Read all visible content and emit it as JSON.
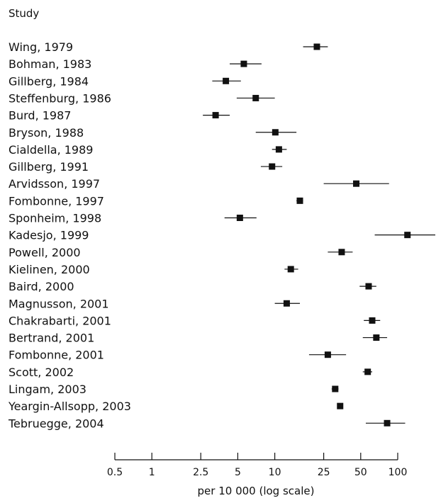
{
  "chart_data": {
    "type": "forest",
    "column_header": "Study",
    "xlabel": "per 10 000 (log scale)",
    "x_scale": "log",
    "xlim": [
      0.5,
      100
    ],
    "x_ticks": [
      {
        "value": 0.5,
        "label": "0.5"
      },
      {
        "value": 1,
        "label": "1"
      },
      {
        "value": 2.5,
        "label": "2.5"
      },
      {
        "value": 5,
        "label": "5"
      },
      {
        "value": 10,
        "label": "10"
      },
      {
        "value": 25,
        "label": "25"
      },
      {
        "value": 50,
        "label": "50"
      },
      {
        "value": 100,
        "label": "100"
      }
    ],
    "studies": [
      {
        "label": "Wing, 1979",
        "estimate": 22,
        "lower": 17,
        "upper": 27
      },
      {
        "label": "Bohman, 1983",
        "estimate": 5.6,
        "lower": 4.3,
        "upper": 7.8
      },
      {
        "label": "Gillberg, 1984",
        "estimate": 4.0,
        "lower": 3.1,
        "upper": 5.3
      },
      {
        "label": "Steffenburg, 1986",
        "estimate": 7.0,
        "lower": 4.9,
        "upper": 10.0
      },
      {
        "label": "Burd, 1987",
        "estimate": 3.3,
        "lower": 2.6,
        "upper": 4.3
      },
      {
        "label": "Bryson, 1988",
        "estimate": 10.1,
        "lower": 7.0,
        "upper": 15.0
      },
      {
        "label": "Cialdella, 1989",
        "estimate": 10.8,
        "lower": 9.5,
        "upper": 12.5
      },
      {
        "label": "Gillberg, 1991",
        "estimate": 9.5,
        "lower": 7.7,
        "upper": 11.5
      },
      {
        "label": "Arvidsson, 1997",
        "estimate": 46,
        "lower": 25,
        "upper": 85
      },
      {
        "label": "Fombonne, 1997",
        "estimate": 16,
        "lower": 15,
        "upper": 17
      },
      {
        "label": "Sponheim, 1998",
        "estimate": 5.2,
        "lower": 3.9,
        "upper": 7.1
      },
      {
        "label": "Kadesjo, 1999",
        "estimate": 120,
        "lower": 65,
        "upper": 215
      },
      {
        "label": "Powell, 2000",
        "estimate": 35,
        "lower": 27,
        "upper": 43
      },
      {
        "label": "Kielinen, 2000",
        "estimate": 13.5,
        "lower": 12,
        "upper": 15.5
      },
      {
        "label": "Baird, 2000",
        "estimate": 58,
        "lower": 49,
        "upper": 67
      },
      {
        "label": "Magnusson, 2001",
        "estimate": 12.5,
        "lower": 10,
        "upper": 16
      },
      {
        "label": "Chakrabarti, 2001",
        "estimate": 62,
        "lower": 53,
        "upper": 72
      },
      {
        "label": "Bertrand, 2001",
        "estimate": 67,
        "lower": 52,
        "upper": 82
      },
      {
        "label": "Fombonne, 2001",
        "estimate": 27,
        "lower": 19,
        "upper": 38
      },
      {
        "label": "Scott, 2002",
        "estimate": 57,
        "lower": 52,
        "upper": 62
      },
      {
        "label": "Lingam, 2003",
        "estimate": 31,
        "lower": 29,
        "upper": 33
      },
      {
        "label": "Yeargin-Allsopp, 2003",
        "estimate": 34,
        "lower": 33,
        "upper": 35
      },
      {
        "label": "Tebruegge, 2004",
        "estimate": 82,
        "lower": 55,
        "upper": 115
      }
    ]
  }
}
